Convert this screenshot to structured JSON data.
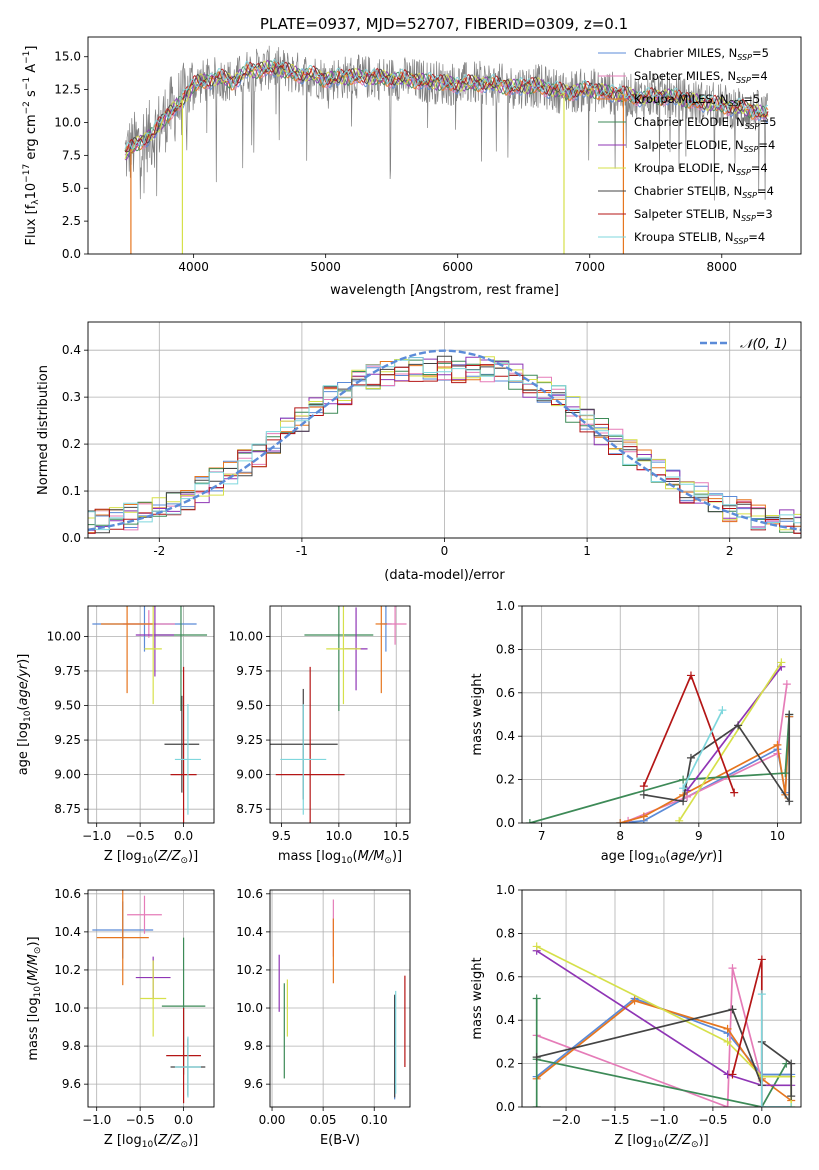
{
  "title": "PLATE=0937, MJD=52707, FIBERID=0309, z=0.1",
  "colors": {
    "s0": "#5b8bd8",
    "s1": "#e57cb8",
    "s2": "#e6761f",
    "s3": "#3d8a57",
    "s4": "#8f35b5",
    "s5": "#d6e04a",
    "s6": "#444444",
    "s7": "#b41616",
    "s8": "#7fd7dd",
    "spectrum": "#808080",
    "gaussian": "#5b8bd8",
    "grid": "#b0b0b0"
  },
  "chart_data": [
    {
      "id": "spectrum",
      "type": "line",
      "xlabel": "wavelength [Angstrom, rest frame]",
      "ylabel": "Flux [f_λ10^-17 erg cm^-2 s^-1 A^-1]",
      "xlim": [
        3200,
        8600
      ],
      "ylim": [
        0,
        16.5
      ],
      "xticks": [
        4000,
        5000,
        6000,
        7000,
        8000
      ],
      "yticks": [
        0.0,
        2.5,
        5.0,
        7.5,
        10.0,
        12.5,
        15.0
      ],
      "ytick_labels": [
        "0.0",
        "2.5",
        "5.0",
        "7.5",
        "10.0",
        "12.5",
        "15.0"
      ],
      "grid": false,
      "legend_position": "right",
      "legend": [
        {
          "main": "Chabrier MILES, N",
          "sub": "SSP",
          "tail": "=5"
        },
        {
          "main": "Salpeter MILES, N",
          "sub": "SSP",
          "tail": "=4"
        },
        {
          "main": "Kroupa MILES, N",
          "sub": "SSP",
          "tail": "=5"
        },
        {
          "main": "Chabrier ELODIE, N",
          "sub": "SSP",
          "tail": "=5"
        },
        {
          "main": "Salpeter ELODIE, N",
          "sub": "SSP",
          "tail": "=4"
        },
        {
          "main": "Kroupa ELODIE, N",
          "sub": "SSP",
          "tail": "=4"
        },
        {
          "main": "Chabrier STELIB, N",
          "sub": "SSP",
          "tail": "=4"
        },
        {
          "main": "Salpeter STELIB, N",
          "sub": "SSP",
          "tail": "=3"
        },
        {
          "main": "Kroupa STELIB, N",
          "sub": "SSP",
          "tail": "=4"
        }
      ],
      "model_x": [
        3480,
        3600,
        3700,
        3800,
        3900,
        4000,
        4100,
        4200,
        4300,
        4400,
        4500,
        4600,
        4700,
        4800,
        4900,
        5000,
        5200,
        5400,
        5600,
        5800,
        6000,
        6200,
        6400,
        6600,
        6800,
        7000,
        7200,
        7400,
        7600,
        7800,
        8000,
        8200,
        8350
      ],
      "model_y": [
        7.6,
        8.6,
        9.2,
        10.6,
        11.5,
        12.9,
        13.2,
        13.4,
        13.1,
        13.9,
        14.0,
        14.2,
        13.9,
        13.7,
        13.6,
        13.3,
        13.5,
        13.4,
        13.3,
        13.1,
        12.9,
        13.0,
        12.7,
        12.8,
        12.3,
        12.5,
        12.2,
        11.9,
        12.0,
        11.6,
        11.3,
        11.0,
        10.6
      ]
    },
    {
      "id": "residuals",
      "type": "histogram",
      "xlabel": "(data-model)/error",
      "ylabel": "Normed distribution",
      "xlim": [
        -2.5,
        2.5
      ],
      "ylim": [
        0,
        0.46
      ],
      "xticks": [
        -2,
        -1,
        0,
        1,
        2
      ],
      "yticks": [
        0.0,
        0.1,
        0.2,
        0.3,
        0.4
      ],
      "ytick_labels": [
        "0.0",
        "0.1",
        "0.2",
        "0.3",
        "0.4"
      ],
      "grid": true,
      "legend": "𝒩(0, 1)",
      "legend_position": "top-right",
      "bin_width": 0.1
    },
    {
      "id": "age_vs_Z",
      "type": "errorbar",
      "xlabel": "Z [log10(Z/Z⊙)]",
      "ylabel": "age [log10(age/yr)]",
      "xlim": [
        -1.1,
        0.35
      ],
      "ylim": [
        8.65,
        10.22
      ],
      "xticks": [
        -1.0,
        -0.5,
        0.0
      ],
      "xtick_labels": [
        "−1.0",
        "−0.5",
        "0.0"
      ],
      "yticks": [
        8.75,
        9.0,
        9.25,
        9.5,
        9.75,
        10.0
      ],
      "ytick_labels": [
        "8.75",
        "9.00",
        "9.25",
        "9.50",
        "9.75",
        "10.00"
      ],
      "grid": true,
      "points": [
        {
          "x": -0.45,
          "xerr": 0.6,
          "y": 10.09,
          "yerr": 0.2,
          "c": "s0"
        },
        {
          "x": -0.4,
          "xerr": 0.3,
          "y": 10.09,
          "yerr": 0.1,
          "c": "s1"
        },
        {
          "x": -0.65,
          "xerr": 0.3,
          "y": 10.09,
          "yerr": 0.5,
          "c": "s2"
        },
        {
          "x": -0.03,
          "xerr": 0.3,
          "y": 10.01,
          "yerr": 0.55,
          "c": "s3"
        },
        {
          "x": -0.33,
          "xerr": 0.22,
          "y": 10.01,
          "yerr": 0.3,
          "c": "s4"
        },
        {
          "x": -0.35,
          "xerr": 0.1,
          "y": 9.91,
          "yerr": 0.4,
          "c": "s5"
        },
        {
          "x": -0.02,
          "xerr": 0.2,
          "y": 9.22,
          "yerr": 0.35,
          "c": "s6"
        },
        {
          "x": 0.0,
          "xerr": 0.15,
          "y": 9.0,
          "yerr": 0.78,
          "c": "s7"
        },
        {
          "x": 0.05,
          "xerr": 0.15,
          "y": 9.11,
          "yerr": 0.4,
          "c": "s8"
        }
      ]
    },
    {
      "id": "age_vs_mass",
      "type": "errorbar",
      "xlabel": "mass [log10(M/M⊙)]",
      "ylabel": "",
      "xlim": [
        9.4,
        10.62
      ],
      "ylim": [
        8.65,
        10.22
      ],
      "xticks": [
        9.5,
        10.0,
        10.5
      ],
      "xtick_labels": [
        "9.5",
        "10.0",
        "10.5"
      ],
      "yticks": [
        8.75,
        9.0,
        9.25,
        9.5,
        9.75,
        10.0
      ],
      "ytick_labels": [
        "8.75",
        "9.00",
        "9.25",
        "9.50",
        "9.75",
        "10.00"
      ],
      "grid": true,
      "points": [
        {
          "x": 10.41,
          "xerr": 0.05,
          "y": 10.09,
          "yerr": 0.2,
          "c": "s0"
        },
        {
          "x": 10.49,
          "xerr": 0.1,
          "y": 10.09,
          "yerr": 0.15,
          "c": "s1"
        },
        {
          "x": 10.37,
          "xerr": 0.05,
          "y": 10.09,
          "yerr": 0.5,
          "c": "s2"
        },
        {
          "x": 10.0,
          "xerr": 0.3,
          "y": 10.01,
          "yerr": 0.55,
          "c": "s3"
        },
        {
          "x": 10.15,
          "xerr": 0.1,
          "y": 9.91,
          "yerr": 0.3,
          "c": "s4"
        },
        {
          "x": 10.04,
          "xerr": 0.15,
          "y": 9.91,
          "yerr": 0.4,
          "c": "s5"
        },
        {
          "x": 9.69,
          "xerr": 0.3,
          "y": 9.22,
          "yerr": 0.4,
          "c": "s6"
        },
        {
          "x": 9.75,
          "xerr": 0.3,
          "y": 9.0,
          "yerr": 0.78,
          "c": "s7"
        },
        {
          "x": 9.69,
          "xerr": 0.2,
          "y": 9.11,
          "yerr": 0.4,
          "c": "s8"
        }
      ]
    },
    {
      "id": "weight_vs_age",
      "type": "line",
      "xlabel": "age [log10(age/yr)]",
      "ylabel": "mass weight",
      "xlim": [
        6.75,
        10.3
      ],
      "ylim": [
        0,
        1.0
      ],
      "xticks": [
        7,
        8,
        9,
        10
      ],
      "xtick_labels": [
        "7",
        "8",
        "9",
        "10"
      ],
      "yticks": [
        0.0,
        0.2,
        0.4,
        0.6,
        0.8,
        1.0
      ],
      "ytick_labels": [
        "0.0",
        "0.2",
        "0.4",
        "0.6",
        "0.8",
        "1.0"
      ],
      "grid": true,
      "series": [
        {
          "c": "s0",
          "x": [
            8.0,
            8.3,
            8.85,
            10.0,
            10.1,
            10.15
          ],
          "y": [
            0.0,
            0.01,
            0.12,
            0.34,
            0.14,
            0.49
          ]
        },
        {
          "c": "s1",
          "x": [
            8.1,
            8.85,
            10.0,
            10.12
          ],
          "y": [
            0.01,
            0.12,
            0.32,
            0.64
          ]
        },
        {
          "c": "s2",
          "x": [
            8.0,
            8.3,
            8.8,
            10.0,
            10.1,
            10.15
          ],
          "y": [
            0.0,
            0.03,
            0.13,
            0.36,
            0.13,
            0.49
          ]
        },
        {
          "c": "s3",
          "x": [
            6.85,
            8.8,
            10.1,
            10.15
          ],
          "y": [
            0.0,
            0.2,
            0.23,
            0.5
          ]
        },
        {
          "c": "s4",
          "x": [
            8.85,
            10.05
          ],
          "y": [
            0.15,
            0.72
          ]
        },
        {
          "c": "s5",
          "x": [
            8.75,
            10.05
          ],
          "y": [
            0.01,
            0.74
          ]
        },
        {
          "c": "s6",
          "x": [
            8.3,
            8.8,
            8.9,
            9.5,
            10.15,
            10.15
          ],
          "y": [
            0.13,
            0.1,
            0.3,
            0.45,
            0.1,
            0.5
          ]
        },
        {
          "c": "s7",
          "x": [
            8.3,
            8.9,
            9.45
          ],
          "y": [
            0.17,
            0.68,
            0.14
          ]
        },
        {
          "c": "s8",
          "x": [
            8.8,
            9.3
          ],
          "y": [
            0.16,
            0.52
          ]
        }
      ]
    },
    {
      "id": "mass_vs_Z",
      "type": "errorbar",
      "xlabel": "Z [log10(Z/Z⊙)]",
      "ylabel": "mass [log10(M/M⊙)]",
      "xlim": [
        -1.1,
        0.35
      ],
      "ylim": [
        9.48,
        10.62
      ],
      "xticks": [
        -1.0,
        -0.5,
        0.0
      ],
      "xtick_labels": [
        "−1.0",
        "−0.5",
        "0.0"
      ],
      "yticks": [
        9.6,
        9.8,
        10.0,
        10.2,
        10.4,
        10.6
      ],
      "ytick_labels": [
        "9.6",
        "9.8",
        "10.0",
        "10.2",
        "10.4",
        "10.6"
      ],
      "grid": true,
      "points": [
        {
          "x": -0.7,
          "xerr": 0.35,
          "y": 10.41,
          "yerr": 0.15,
          "c": "s0"
        },
        {
          "x": -0.45,
          "xerr": 0.2,
          "y": 10.49,
          "yerr": 0.1,
          "c": "s1"
        },
        {
          "x": -0.7,
          "xerr": 0.3,
          "y": 10.37,
          "yerr": 0.25,
          "c": "s2"
        },
        {
          "x": 0.0,
          "xerr": 0.25,
          "y": 10.01,
          "yerr": 0.36,
          "c": "s3"
        },
        {
          "x": -0.35,
          "xerr": 0.2,
          "y": 10.16,
          "yerr": 0.11,
          "c": "s4"
        },
        {
          "x": -0.35,
          "xerr": 0.15,
          "y": 10.05,
          "yerr": 0.2,
          "c": "s5"
        },
        {
          "x": 0.05,
          "xerr": 0.2,
          "y": 9.69,
          "yerr": 0.15,
          "c": "s6"
        },
        {
          "x": 0.0,
          "xerr": 0.2,
          "y": 9.75,
          "yerr": 0.25,
          "c": "s7"
        },
        {
          "x": 0.05,
          "xerr": 0.15,
          "y": 9.69,
          "yerr": 0.16,
          "c": "s8"
        }
      ]
    },
    {
      "id": "mass_vs_ebv",
      "type": "errorbar",
      "xlabel": "E(B-V)",
      "ylabel": "",
      "xlim": [
        -0.002,
        0.135
      ],
      "ylim": [
        9.48,
        10.62
      ],
      "xticks": [
        0.0,
        0.05,
        0.1
      ],
      "xtick_labels": [
        "0.00",
        "0.05",
        "0.10"
      ],
      "yticks": [
        9.6,
        9.8,
        10.0,
        10.2,
        10.4,
        10.6
      ],
      "ytick_labels": [
        "9.6",
        "9.8",
        "10.0",
        "10.2",
        "10.4",
        "10.6"
      ],
      "grid": true,
      "points": [
        {
          "x": 0.12,
          "xerr": 0.0,
          "y": 9.79,
          "yerr": 0.27,
          "c": "s0"
        },
        {
          "x": 0.06,
          "xerr": 0.0,
          "y": 10.42,
          "yerr": 0.15,
          "c": "s1"
        },
        {
          "x": 0.06,
          "xerr": 0.0,
          "y": 10.3,
          "yerr": 0.17,
          "c": "s2"
        },
        {
          "x": 0.012,
          "xerr": 0.0,
          "y": 9.88,
          "yerr": 0.25,
          "c": "s3"
        },
        {
          "x": 0.007,
          "xerr": 0.0,
          "y": 10.13,
          "yerr": 0.15,
          "c": "s4"
        },
        {
          "x": 0.015,
          "xerr": 0.0,
          "y": 10.0,
          "yerr": 0.15,
          "c": "s5"
        },
        {
          "x": 0.12,
          "xerr": 0.0,
          "y": 9.8,
          "yerr": 0.27,
          "c": "s6"
        },
        {
          "x": 0.13,
          "xerr": 0.0,
          "y": 9.93,
          "yerr": 0.24,
          "c": "s7"
        },
        {
          "x": 0.121,
          "xerr": 0.0,
          "y": 9.82,
          "yerr": 0.27,
          "c": "s8"
        }
      ]
    },
    {
      "id": "weight_vs_Z",
      "type": "line",
      "xlabel": "Z [log10(Z/Z⊙)]",
      "ylabel": "mass weight",
      "xlim": [
        -2.45,
        0.4
      ],
      "ylim": [
        0,
        1.0
      ],
      "xticks": [
        -2.0,
        -1.5,
        -1.0,
        -0.5,
        0.0
      ],
      "xtick_labels": [
        "−2.0",
        "−1.5",
        "−1.0",
        "−0.5",
        "0.0"
      ],
      "yticks": [
        0.0,
        0.2,
        0.4,
        0.6,
        0.8,
        1.0
      ],
      "ytick_labels": [
        "0.0",
        "0.2",
        "0.4",
        "0.6",
        "0.8",
        "1.0"
      ],
      "grid": true,
      "series": [
        {
          "c": "s0",
          "x": [
            -2.3,
            -1.3,
            -0.35,
            0.0,
            0.3
          ],
          "y": [
            0.14,
            0.5,
            0.34,
            0.15,
            0.15
          ]
        },
        {
          "c": "s1",
          "x": [
            -2.3,
            -0.35,
            -0.3,
            0.0
          ],
          "y": [
            0.33,
            0.0,
            0.64,
            0.12
          ]
        },
        {
          "c": "s2",
          "x": [
            -2.3,
            -1.3,
            -0.35,
            0.0,
            0.3
          ],
          "y": [
            0.13,
            0.49,
            0.36,
            0.13,
            0.03
          ]
        },
        {
          "c": "s3",
          "x": [
            -2.3,
            -2.3,
            -2.3,
            0.0,
            0.25
          ],
          "y": [
            0.5,
            0.0,
            0.22,
            0.0,
            0.2
          ]
        },
        {
          "c": "s4",
          "x": [
            -2.3,
            -0.35,
            0.0,
            0.3
          ],
          "y": [
            0.72,
            0.15,
            0.1,
            0.1
          ]
        },
        {
          "c": "s5",
          "x": [
            -2.3,
            -0.35,
            0.0,
            0.3,
            0.3
          ],
          "y": [
            0.74,
            0.3,
            0.14,
            0.14,
            0.0
          ]
        },
        {
          "c": "s6",
          "x": [
            -2.3,
            -0.3,
            0.0,
            0.0,
            0.3,
            0.3
          ],
          "y": [
            0.23,
            0.45,
            0.1,
            0.3,
            0.2,
            0.05
          ]
        },
        {
          "c": "s7",
          "x": [
            -0.3,
            0.0,
            0.0
          ],
          "y": [
            0.15,
            0.68,
            0.0
          ]
        },
        {
          "c": "s8",
          "x": [
            0.0,
            0.0,
            0.3
          ],
          "y": [
            0.52,
            0.0,
            0.0
          ]
        }
      ]
    }
  ]
}
